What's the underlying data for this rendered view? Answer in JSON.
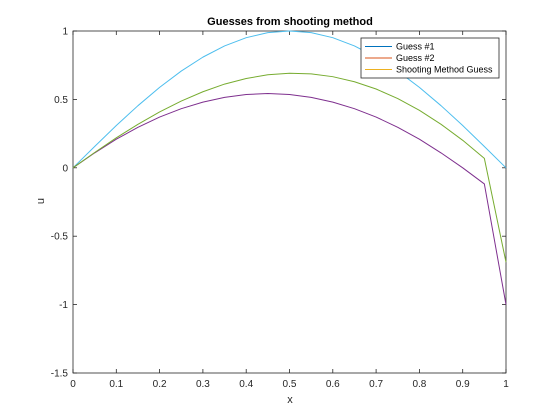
{
  "chart_data": {
    "type": "line",
    "title": "Guesses from shooting method",
    "xlabel": "x",
    "ylabel": "u",
    "xlim": [
      0,
      1
    ],
    "ylim": [
      -1.5,
      1
    ],
    "xticks": [
      0,
      0.1,
      0.2,
      0.3,
      0.4,
      0.5,
      0.6,
      0.7,
      0.8,
      0.9,
      1
    ],
    "xtick_labels": [
      "0",
      "0.1",
      "0.2",
      "0.3",
      "0.4",
      "0.5",
      "0.6",
      "0.7",
      "0.8",
      "0.9",
      "1"
    ],
    "yticks": [
      -1.5,
      -1,
      -0.5,
      0,
      0.5,
      1
    ],
    "ytick_labels": [
      "-1.5",
      "-1",
      "-0.5",
      "0",
      "0.5",
      "1"
    ],
    "grid": false,
    "legend_position": "top-right",
    "x": [
      0,
      0.05,
      0.1,
      0.15,
      0.2,
      0.25,
      0.3,
      0.35,
      0.4,
      0.45,
      0.5,
      0.55,
      0.6,
      0.65,
      0.7,
      0.75,
      0.8,
      0.85,
      0.9,
      0.95,
      1
    ],
    "series": [
      {
        "name": "Guess #1",
        "legend_color": "#0072BD",
        "color": "#4DBEEE",
        "values": [
          0,
          0.156,
          0.309,
          0.454,
          0.588,
          0.707,
          0.809,
          0.891,
          0.951,
          0.988,
          1.0,
          0.988,
          0.951,
          0.891,
          0.809,
          0.707,
          0.588,
          0.454,
          0.309,
          0.156,
          0
        ]
      },
      {
        "name": "Guess #2",
        "legend_color": "#D95319",
        "color": "#7E2F8E",
        "values": [
          0,
          0.109,
          0.209,
          0.296,
          0.371,
          0.432,
          0.48,
          0.515,
          0.536,
          0.543,
          0.536,
          0.515,
          0.48,
          0.432,
          0.371,
          0.296,
          0.209,
          0.109,
          -0.0,
          -0.118,
          -1.0
        ]
      },
      {
        "name": "Shooting Method Guess",
        "legend_color": "#EDB120",
        "color": "#77AC30",
        "values": [
          0,
          0.112,
          0.219,
          0.318,
          0.408,
          0.488,
          0.556,
          0.612,
          0.653,
          0.68,
          0.691,
          0.687,
          0.666,
          0.629,
          0.576,
          0.506,
          0.42,
          0.318,
          0.201,
          0.069,
          -0.69
        ]
      }
    ]
  }
}
